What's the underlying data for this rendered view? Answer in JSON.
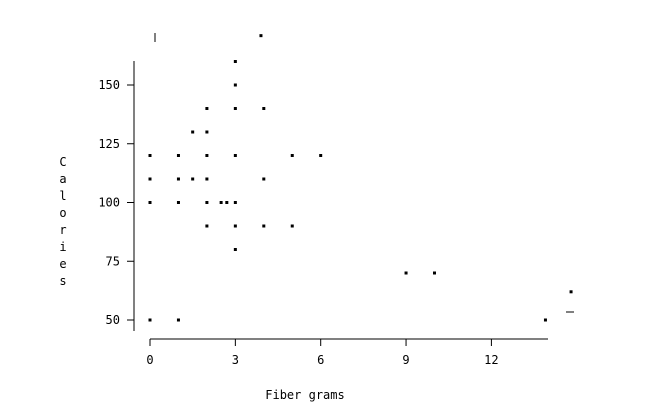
{
  "chart_data": {
    "type": "scatter",
    "xlabel": "Fiber grams",
    "ylabel": "Calories",
    "xlim": [
      0,
      14
    ],
    "ylim": [
      45,
      160
    ],
    "x_ticks": [
      0,
      3,
      6,
      9,
      12
    ],
    "y_ticks": [
      50,
      75,
      100,
      125,
      150
    ],
    "grid": false,
    "points": [
      {
        "x": 0,
        "y": 50
      },
      {
        "x": 0,
        "y": 100
      },
      {
        "x": 0,
        "y": 110
      },
      {
        "x": 0,
        "y": 120
      },
      {
        "x": 1,
        "y": 50
      },
      {
        "x": 1,
        "y": 100
      },
      {
        "x": 1,
        "y": 110
      },
      {
        "x": 1,
        "y": 120
      },
      {
        "x": 1.5,
        "y": 110
      },
      {
        "x": 1.5,
        "y": 130
      },
      {
        "x": 2,
        "y": 90
      },
      {
        "x": 2,
        "y": 100
      },
      {
        "x": 2,
        "y": 110
      },
      {
        "x": 2,
        "y": 120
      },
      {
        "x": 2,
        "y": 130
      },
      {
        "x": 2,
        "y": 140
      },
      {
        "x": 2.5,
        "y": 100
      },
      {
        "x": 2.7,
        "y": 100
      },
      {
        "x": 3,
        "y": 80
      },
      {
        "x": 3,
        "y": 90
      },
      {
        "x": 3,
        "y": 100
      },
      {
        "x": 3,
        "y": 120
      },
      {
        "x": 3,
        "y": 140
      },
      {
        "x": 3,
        "y": 150
      },
      {
        "x": 3,
        "y": 160
      },
      {
        "x": 3.9,
        "y": 171
      },
      {
        "x": 4,
        "y": 90
      },
      {
        "x": 4,
        "y": 110
      },
      {
        "x": 4,
        "y": 140
      },
      {
        "x": 5,
        "y": 90
      },
      {
        "x": 5,
        "y": 120
      },
      {
        "x": 6,
        "y": 120
      },
      {
        "x": 9,
        "y": 70
      },
      {
        "x": 10,
        "y": 70
      },
      {
        "x": 13.9,
        "y": 50
      },
      {
        "x": 14.8,
        "y": 62
      }
    ]
  }
}
